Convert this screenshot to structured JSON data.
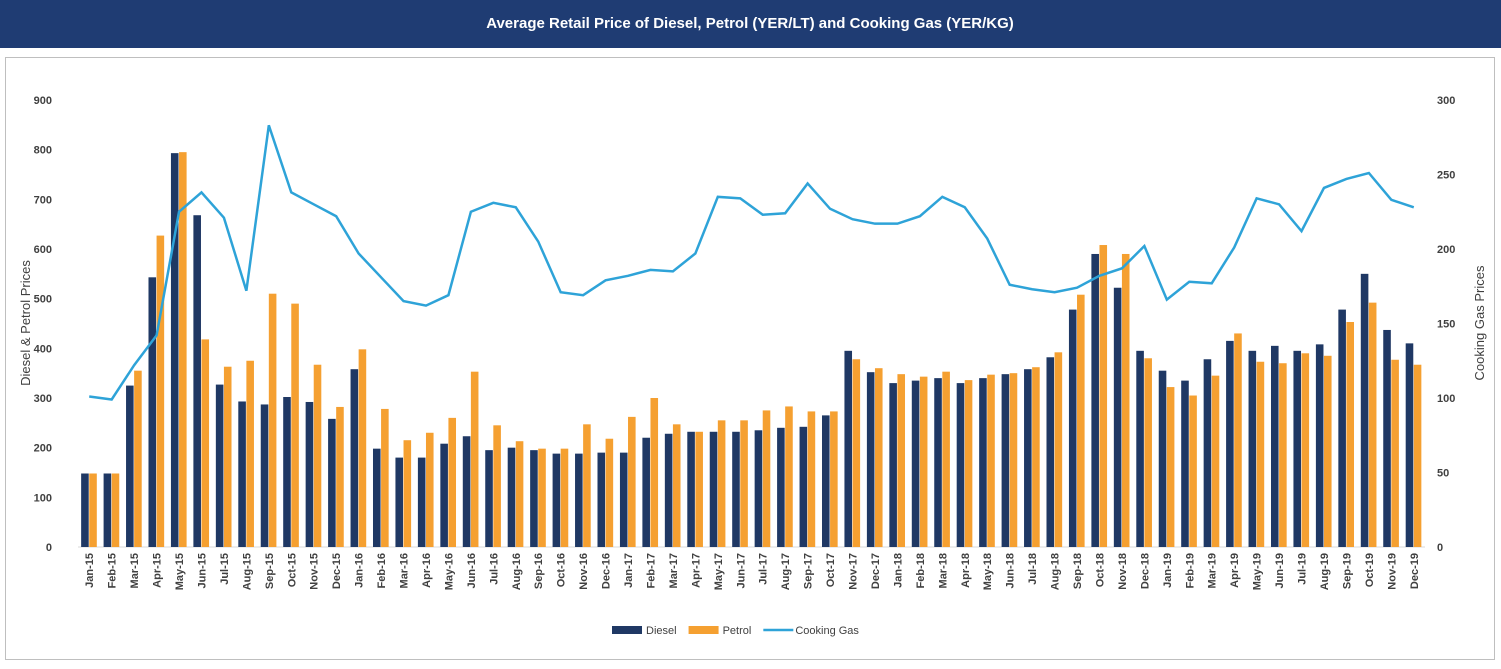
{
  "chart_data": {
    "type": "bar",
    "title": "Average Retail Price of Diesel, Petrol (YER/LT) and Cooking Gas (YER/KG)",
    "ylabel": "Diesel & Petrol Prices",
    "y2label": "Cooking Gas Prices",
    "categories": [
      "Jan-15",
      "Feb-15",
      "Mar-15",
      "Apr-15",
      "May-15",
      "Jun-15",
      "Jul-15",
      "Aug-15",
      "Sep-15",
      "Oct-15",
      "Nov-15",
      "Dec-15",
      "Jan-16",
      "Feb-16",
      "Mar-16",
      "Apr-16",
      "May-16",
      "Jun-16",
      "Jul-16",
      "Aug-16",
      "Sep-16",
      "Oct-16",
      "Nov-16",
      "Dec-16",
      "Jan-17",
      "Feb-17",
      "Mar-17",
      "Apr-17",
      "May-17",
      "Jun-17",
      "Jul-17",
      "Aug-17",
      "Sep-17",
      "Oct-17",
      "Nov-17",
      "Dec-17",
      "Jan-18",
      "Feb-18",
      "Mar-18",
      "Apr-18",
      "May-18",
      "Jun-18",
      "Jul-18",
      "Aug-18",
      "Sep-18",
      "Oct-18",
      "Nov-18",
      "Dec-18",
      "Jan-19",
      "Feb-19",
      "Mar-19",
      "Apr-19",
      "May-19",
      "Jun-19",
      "Jul-19",
      "Aug-19",
      "Sep-19",
      "Oct-19",
      "Nov-19",
      "Dec-19"
    ],
    "series": [
      {
        "name": "Diesel",
        "color": "#1f3864",
        "type": "bar",
        "axis": "y",
        "values": [
          148,
          148,
          325,
          543,
          793,
          668,
          327,
          293,
          287,
          302,
          292,
          258,
          358,
          198,
          180,
          180,
          208,
          223,
          195,
          200,
          195,
          188,
          188,
          190,
          190,
          220,
          228,
          232,
          232,
          232,
          235,
          240,
          242,
          265,
          395,
          352,
          330,
          335,
          340,
          330,
          340,
          348,
          358,
          382,
          478,
          590,
          522,
          395,
          355,
          335,
          378,
          415,
          395,
          405,
          395,
          408,
          478,
          550,
          437,
          410
        ]
      },
      {
        "name": "Petrol",
        "color": "#f5a031",
        "type": "bar",
        "axis": "y",
        "values": [
          148,
          148,
          355,
          627,
          795,
          418,
          363,
          375,
          510,
          490,
          367,
          282,
          398,
          278,
          215,
          230,
          260,
          353,
          245,
          213,
          198,
          198,
          247,
          218,
          262,
          300,
          247,
          232,
          255,
          255,
          275,
          283,
          273,
          273,
          378,
          360,
          348,
          343,
          353,
          336,
          347,
          350,
          362,
          392,
          508,
          608,
          590,
          380,
          322,
          305,
          345,
          430,
          373,
          370,
          390,
          385,
          453,
          492,
          377,
          367
        ]
      },
      {
        "name": "Cooking Gas",
        "color": "#2ea3d8",
        "type": "line",
        "axis": "y2",
        "values": [
          101,
          99,
          122,
          142,
          225,
          238,
          221,
          172,
          283,
          238,
          230,
          222,
          197,
          181,
          165,
          162,
          169,
          225,
          231,
          228,
          205,
          171,
          169,
          179,
          182,
          186,
          185,
          197,
          235,
          234,
          223,
          224,
          244,
          227,
          220,
          217,
          217,
          222,
          235,
          228,
          207,
          176,
          173,
          171,
          174,
          182,
          187,
          202,
          166,
          178,
          177,
          201,
          234,
          230,
          212,
          241,
          247,
          251,
          233,
          228
        ]
      }
    ],
    "ylim": [
      0,
      900
    ],
    "yticks": [
      0,
      100,
      200,
      300,
      400,
      500,
      600,
      700,
      800,
      900
    ],
    "y2lim": [
      0,
      300
    ],
    "y2ticks": [
      0,
      50,
      100,
      150,
      200,
      250,
      300
    ],
    "legend": "bottom"
  }
}
